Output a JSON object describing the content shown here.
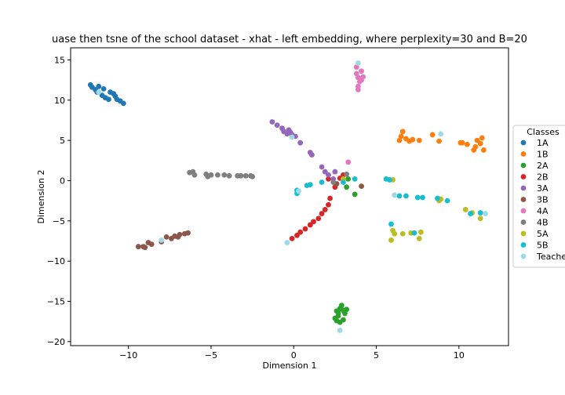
{
  "chart_data": {
    "type": "scatter",
    "title": "uase then tsne of the school dataset - xhat - left embedding, where perplexity=30 and B=20",
    "xlabel": "Dimension 1",
    "ylabel": "Dimension 2",
    "xlim": [
      -13.5,
      13
    ],
    "ylim": [
      -20.5,
      16.5
    ],
    "xticks": [
      -10,
      -5,
      0,
      5,
      10
    ],
    "yticks": [
      -20,
      -15,
      -10,
      -5,
      0,
      5,
      10,
      15
    ],
    "xtick_labels": [
      "−10",
      "−5",
      "0",
      "5",
      "10"
    ],
    "ytick_labels": [
      "−20",
      "−15",
      "−10",
      "−5",
      "0",
      "5",
      "10",
      "15"
    ],
    "grid": false,
    "legend": {
      "title": "Classes",
      "placement": "right, outside plot",
      "entries": [
        "1A",
        "1B",
        "2A",
        "2B",
        "3A",
        "3B",
        "4A",
        "4B",
        "5A",
        "5B",
        "Teache"
      ]
    },
    "series": [
      {
        "name": "1A",
        "color": "#1f77b4",
        "points": [
          [
            -12.3,
            11.9
          ],
          [
            -12.2,
            11.6
          ],
          [
            -12.0,
            11.3
          ],
          [
            -11.8,
            11.7
          ],
          [
            -11.6,
            10.6
          ],
          [
            -11.5,
            11.4
          ],
          [
            -11.4,
            10.3
          ],
          [
            -11.2,
            10.1
          ],
          [
            -11.1,
            11.0
          ],
          [
            -10.9,
            10.8
          ],
          [
            -10.8,
            10.5
          ],
          [
            -10.7,
            10.1
          ],
          [
            -10.5,
            9.9
          ],
          [
            -10.3,
            9.6
          ],
          [
            -11.9,
            11.0
          ]
        ]
      },
      {
        "name": "1B",
        "color": "#ff7f0e",
        "points": [
          [
            6.4,
            5.0
          ],
          [
            6.5,
            5.5
          ],
          [
            6.6,
            6.1
          ],
          [
            6.8,
            5.2
          ],
          [
            7.0,
            4.9
          ],
          [
            7.2,
            5.1
          ],
          [
            7.6,
            5.0
          ],
          [
            8.4,
            5.7
          ],
          [
            8.8,
            4.9
          ],
          [
            10.1,
            4.7
          ],
          [
            10.5,
            4.5
          ],
          [
            10.9,
            3.8
          ],
          [
            11.0,
            4.2
          ],
          [
            11.1,
            5.0
          ],
          [
            11.3,
            4.6
          ],
          [
            11.4,
            5.3
          ],
          [
            11.5,
            3.8
          ],
          [
            10.2,
            4.7
          ]
        ]
      },
      {
        "name": "2A",
        "color": "#2ca02c",
        "points": [
          [
            2.6,
            -16.2
          ],
          [
            2.7,
            -16.8
          ],
          [
            2.8,
            -15.9
          ],
          [
            2.9,
            -15.5
          ],
          [
            3.0,
            -17.3
          ],
          [
            3.1,
            -16.5
          ],
          [
            2.5,
            -17.1
          ],
          [
            2.6,
            -17.4
          ],
          [
            3.2,
            -16.0
          ],
          [
            2.8,
            -17.6
          ],
          [
            3.0,
            -16.1
          ],
          [
            2.7,
            -16.4
          ],
          [
            3.7,
            -1.7
          ],
          [
            3.2,
            -0.8
          ],
          [
            3.3,
            0.2
          ]
        ]
      },
      {
        "name": "2B",
        "color": "#d62728",
        "points": [
          [
            -0.1,
            -7.2
          ],
          [
            0.2,
            -6.8
          ],
          [
            0.4,
            -6.4
          ],
          [
            0.7,
            -6.0
          ],
          [
            1.0,
            -5.5
          ],
          [
            1.2,
            -5.1
          ],
          [
            1.5,
            -4.7
          ],
          [
            1.7,
            -4.1
          ],
          [
            1.9,
            -3.6
          ],
          [
            2.1,
            -3.0
          ],
          [
            2.2,
            -2.2
          ],
          [
            2.5,
            -0.8
          ],
          [
            2.1,
            0.2
          ],
          [
            2.8,
            0.3
          ],
          [
            3.0,
            0.7
          ]
        ]
      },
      {
        "name": "3A",
        "color": "#9467bd",
        "points": [
          [
            -1.3,
            7.3
          ],
          [
            -1.0,
            6.9
          ],
          [
            -0.7,
            6.5
          ],
          [
            -0.6,
            6.1
          ],
          [
            -0.4,
            5.8
          ],
          [
            -0.2,
            6.0
          ],
          [
            -0.1,
            5.7
          ],
          [
            0.1,
            5.5
          ],
          [
            0.4,
            4.7
          ],
          [
            1.0,
            3.5
          ],
          [
            1.1,
            3.2
          ],
          [
            1.7,
            1.7
          ],
          [
            1.9,
            1.1
          ],
          [
            2.1,
            0.7
          ],
          [
            2.4,
            0.2
          ],
          [
            2.5,
            1.1
          ],
          [
            -0.3,
            6.3
          ]
        ]
      },
      {
        "name": "3B",
        "color": "#8c564b",
        "points": [
          [
            -9.4,
            -8.2
          ],
          [
            -9.1,
            -8.2
          ],
          [
            -8.8,
            -7.7
          ],
          [
            -8.6,
            -7.9
          ],
          [
            -8.0,
            -7.6
          ],
          [
            -7.7,
            -7.0
          ],
          [
            -7.4,
            -7.2
          ],
          [
            -7.2,
            -6.9
          ],
          [
            -6.9,
            -6.7
          ],
          [
            -6.6,
            -6.6
          ],
          [
            -6.4,
            -6.5
          ],
          [
            -7.0,
            -7.0
          ],
          [
            4.1,
            -0.7
          ],
          [
            2.6,
            -0.4
          ],
          [
            -9.0,
            -8.3
          ]
        ]
      },
      {
        "name": "4A",
        "color": "#e377c2",
        "points": [
          [
            3.8,
            13.3
          ],
          [
            3.9,
            12.8
          ],
          [
            4.0,
            12.3
          ],
          [
            3.9,
            11.7
          ],
          [
            3.9,
            11.3
          ],
          [
            4.1,
            13.6
          ],
          [
            4.2,
            12.9
          ],
          [
            3.8,
            14.1
          ],
          [
            4.1,
            12.5
          ],
          [
            3.3,
            2.3
          ]
        ]
      },
      {
        "name": "4B",
        "color": "#7f7f7f",
        "points": [
          [
            -6.3,
            1.0
          ],
          [
            -6.1,
            1.1
          ],
          [
            -6.0,
            0.7
          ],
          [
            -5.3,
            0.8
          ],
          [
            -5.0,
            0.7
          ],
          [
            -4.6,
            0.7
          ],
          [
            -4.2,
            0.7
          ],
          [
            -3.9,
            0.6
          ],
          [
            -3.4,
            0.6
          ],
          [
            -3.2,
            0.6
          ],
          [
            -2.9,
            0.6
          ],
          [
            -2.5,
            0.5
          ],
          [
            -2.6,
            0.6
          ],
          [
            -5.2,
            0.5
          ],
          [
            2.4,
            -0.2
          ],
          [
            3.2,
            0.8
          ]
        ]
      },
      {
        "name": "5A",
        "color": "#bcbd22",
        "points": [
          [
            5.9,
            -7.4
          ],
          [
            6.0,
            -6.2
          ],
          [
            6.1,
            -6.6
          ],
          [
            6.6,
            -6.6
          ],
          [
            7.1,
            -6.5
          ],
          [
            7.6,
            -7.2
          ],
          [
            7.7,
            -6.4
          ],
          [
            8.8,
            -2.5
          ],
          [
            8.9,
            -2.3
          ],
          [
            10.4,
            -3.6
          ],
          [
            10.8,
            -4.0
          ],
          [
            11.3,
            -4.7
          ],
          [
            6.0,
            0.1
          ],
          [
            3.0,
            0.2
          ]
        ]
      },
      {
        "name": "5B",
        "color": "#17becf",
        "points": [
          [
            0.2,
            -1.6
          ],
          [
            0.2,
            -1.2
          ],
          [
            0.8,
            -0.6
          ],
          [
            1.0,
            -0.5
          ],
          [
            1.7,
            -0.2
          ],
          [
            3.0,
            -0.2
          ],
          [
            3.7,
            0.2
          ],
          [
            5.6,
            0.2
          ],
          [
            5.8,
            0.1
          ],
          [
            6.4,
            -1.9
          ],
          [
            6.8,
            -1.9
          ],
          [
            7.3,
            -6.5
          ],
          [
            7.5,
            -2.1
          ],
          [
            7.8,
            -2.1
          ],
          [
            8.7,
            -2.2
          ],
          [
            9.3,
            -2.5
          ],
          [
            10.7,
            -4.1
          ],
          [
            11.3,
            -4.0
          ],
          [
            5.9,
            -5.4
          ]
        ]
      },
      {
        "name": "Teache",
        "color": "#9edae5",
        "points": [
          [
            -11.8,
            11.0
          ],
          [
            3.9,
            14.6
          ],
          [
            -0.1,
            5.4
          ],
          [
            8.9,
            5.8
          ],
          [
            -8.0,
            -7.4
          ],
          [
            -0.4,
            -7.7
          ],
          [
            6.1,
            -1.8
          ],
          [
            11.6,
            -4.1
          ],
          [
            2.8,
            -18.6
          ],
          [
            0.3,
            -1.3
          ]
        ]
      }
    ]
  }
}
